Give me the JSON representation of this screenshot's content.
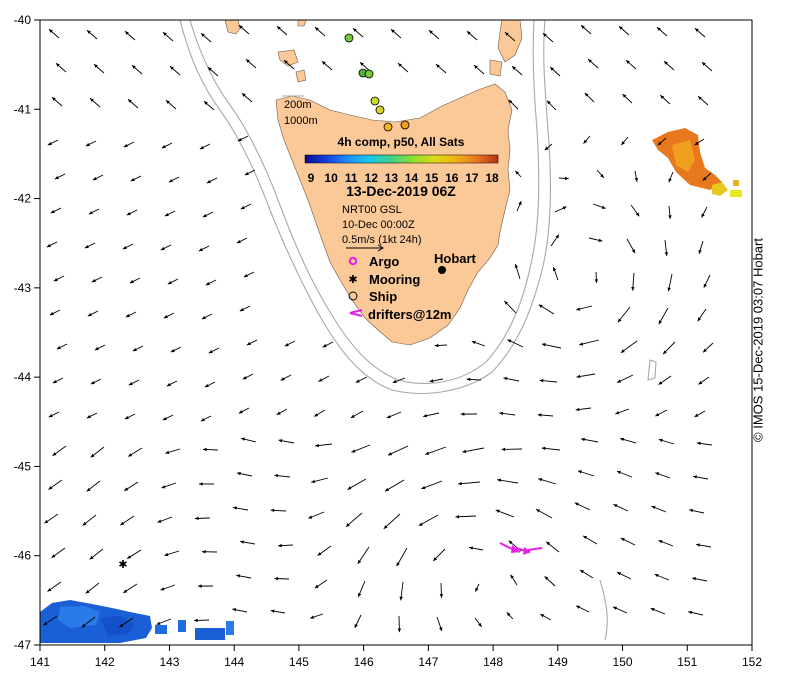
{
  "map": {
    "x_axis": {
      "min": 141,
      "max": 152,
      "ticks": [
        "141",
        "142",
        "143",
        "144",
        "145",
        "146",
        "147",
        "148",
        "149",
        "150",
        "151",
        "152"
      ]
    },
    "y_axis": {
      "min": -47,
      "max": -40,
      "ticks": [
        "-40",
        "-41",
        "-42",
        "-43",
        "-44",
        "-45",
        "-46",
        "-47"
      ]
    },
    "land_color": "#fbc898",
    "isobath_color": "#a8a8a8",
    "arrow_color": "#000000"
  },
  "legend": {
    "isobath_200": "200m",
    "isobath_1000": "1000m",
    "product_title": "4h comp, p50, All Sats",
    "colorbar_labels": [
      "9",
      "10",
      "11",
      "12",
      "13",
      "14",
      "15",
      "16",
      "17",
      "18"
    ],
    "colorbar_colors": [
      "#0a0a8c",
      "#1440e0",
      "#1e90ff",
      "#17c8e8",
      "#3cd28c",
      "#8cdc32",
      "#dcdc14",
      "#f0b414",
      "#e8781e",
      "#b43214"
    ],
    "date": "13-Dec-2019 06Z",
    "current_product": "NRT00 GSL",
    "current_date": "10-Dec 00:00Z",
    "scale_label": "0.5m/s (1kt 24h)",
    "argo_label": "Argo",
    "mooring_label": "Mooring",
    "ship_label": "Ship",
    "drifters_label": "drifters@12m",
    "hobart_label": "Hobart"
  },
  "copyright": "© IMOS 15-Dec-2019 03:07 Hobart"
}
